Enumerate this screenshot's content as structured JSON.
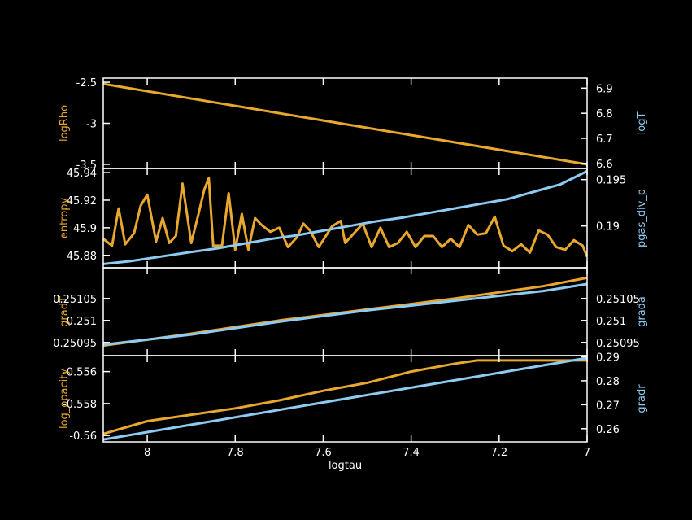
{
  "colors": {
    "left": "#E8A72E",
    "right": "#8DCBF2",
    "frame": "#FFFFFF",
    "background": "#000000"
  },
  "chart_data": [
    {
      "type": "line",
      "x_axis": {
        "label": "logtau",
        "lim": [
          8.1,
          7.0
        ],
        "ticks": [
          "8",
          "7.8",
          "7.6",
          "7.4",
          "7.2",
          "7"
        ]
      },
      "panels": [
        {
          "left_axis": {
            "label": "logRho",
            "lim": [
              -3.55,
              -2.45
            ],
            "ticks": [
              "-3.5",
              "-3",
              "-2.5"
            ],
            "tick_values": [
              -3.5,
              -3.0,
              -2.5
            ]
          },
          "right_axis": {
            "label": "logT",
            "lim": [
              6.58,
              6.94
            ],
            "ticks": [
              "6.6",
              "6.7",
              "6.8",
              "6.9"
            ],
            "tick_values": [
              6.6,
              6.7,
              6.8,
              6.9
            ]
          },
          "series": [
            {
              "axis": "left",
              "x": [
                8.1,
                7.0
              ],
              "y": [
                -2.52,
                -3.5
              ]
            }
          ]
        },
        {
          "left_axis": {
            "label": "entropy",
            "lim": [
              45.871,
              45.943
            ],
            "ticks": [
              "45.88",
              "45.9",
              "45.92",
              "45.94"
            ],
            "tick_values": [
              45.88,
              45.9,
              45.92,
              45.94
            ]
          },
          "right_axis": {
            "label": "pgas_div_p",
            "lim": [
              0.1855,
              0.1962
            ],
            "ticks": [
              "0.19",
              "0.195"
            ],
            "tick_values": [
              0.19,
              0.195
            ]
          },
          "series": [
            {
              "axis": "left",
              "x": [
                8.1,
                8.08,
                8.065,
                8.05,
                8.03,
                8.015,
                8.0,
                7.98,
                7.965,
                7.95,
                7.935,
                7.92,
                7.9,
                7.885,
                7.87,
                7.86,
                7.85,
                7.83,
                7.815,
                7.8,
                7.785,
                7.77,
                7.755,
                7.74,
                7.72,
                7.7,
                7.68,
                7.66,
                7.645,
                7.63,
                7.61,
                7.58,
                7.56,
                7.55,
                7.53,
                7.51,
                7.49,
                7.47,
                7.45,
                7.43,
                7.41,
                7.39,
                7.37,
                7.35,
                7.33,
                7.31,
                7.29,
                7.27,
                7.25,
                7.23,
                7.21,
                7.19,
                7.17,
                7.15,
                7.13,
                7.11,
                7.09,
                7.07,
                7.05,
                7.03,
                7.01,
                7.0
              ],
              "y": [
                45.892,
                45.887,
                45.914,
                45.888,
                45.896,
                45.916,
                45.924,
                45.89,
                45.907,
                45.889,
                45.894,
                45.932,
                45.889,
                45.908,
                45.928,
                45.936,
                45.887,
                45.887,
                45.925,
                45.884,
                45.91,
                45.884,
                45.907,
                45.902,
                45.897,
                45.9,
                45.886,
                45.893,
                45.903,
                45.898,
                45.886,
                45.901,
                45.905,
                45.889,
                45.896,
                45.903,
                45.886,
                45.9,
                45.886,
                45.889,
                45.897,
                45.886,
                45.894,
                45.894,
                45.886,
                45.892,
                45.886,
                45.902,
                45.895,
                45.896,
                45.908,
                45.887,
                45.883,
                45.888,
                45.882,
                45.898,
                45.895,
                45.886,
                45.884,
                45.891,
                45.887,
                45.879
              ]
            },
            {
              "axis": "right",
              "x": [
                8.1,
                8.04,
                7.97,
                7.9,
                7.84,
                7.78,
                7.72,
                7.66,
                7.6,
                7.54,
                7.48,
                7.42,
                7.36,
                7.3,
                7.24,
                7.18,
                7.12,
                7.06,
                7.0
              ],
              "y": [
                0.1859,
                0.1862,
                0.1867,
                0.1872,
                0.1876,
                0.1881,
                0.1886,
                0.189,
                0.1895,
                0.19,
                0.1905,
                0.1909,
                0.1914,
                0.1919,
                0.1924,
                0.1929,
                0.1937,
                0.1945,
                0.1959
              ]
            }
          ]
        },
        {
          "left_axis": {
            "label": "gradT",
            "lim": [
              0.25092,
              0.25112
            ],
            "ticks": [
              "0.25095",
              "0.251",
              "0.25105"
            ],
            "tick_values": [
              0.25095,
              0.251,
              0.25105
            ]
          },
          "right_axis": {
            "label": "grada",
            "lim": [
              0.25092,
              0.25112
            ],
            "ticks": [
              "0.25095",
              "0.251",
              "0.25105"
            ],
            "tick_values": [
              0.25095,
              0.251,
              0.25105
            ]
          },
          "series": [
            {
              "axis": "left",
              "x": [
                8.1,
                7.9,
                7.7,
                7.5,
                7.3,
                7.1,
                7.0
              ],
              "y": [
                0.250943,
                0.25097,
                0.251,
                0.251025,
                0.25105,
                0.251078,
                0.251097
              ]
            },
            {
              "axis": "right",
              "x": [
                8.1,
                7.9,
                7.7,
                7.5,
                7.3,
                7.1,
                7.0
              ],
              "y": [
                0.250945,
                0.250968,
                0.250997,
                0.251023,
                0.251045,
                0.251067,
                0.251083
              ]
            }
          ]
        },
        {
          "left_axis": {
            "label": "log_opacity",
            "lim": [
              -0.5604,
              -0.555
            ],
            "ticks": [
              "-0.56",
              "-0.558",
              "-0.556"
            ],
            "tick_values": [
              -0.56,
              -0.558,
              -0.556
            ]
          },
          "right_axis": {
            "label": "gradr",
            "lim": [
              0.2545,
              0.2905
            ],
            "ticks": [
              "0.26",
              "0.27",
              "0.28",
              "0.29"
            ],
            "tick_values": [
              0.26,
              0.27,
              0.28,
              0.29
            ]
          },
          "series": [
            {
              "axis": "left",
              "x": [
                8.1,
                8.0,
                7.9,
                7.8,
                7.7,
                7.6,
                7.5,
                7.4,
                7.3,
                7.25,
                7.2,
                7.1,
                7.0
              ],
              "y": [
                -0.5599,
                -0.5591,
                -0.5587,
                -0.5583,
                -0.5578,
                -0.5572,
                -0.5567,
                -0.556,
                -0.5555,
                -0.5553,
                -0.5553,
                -0.5553,
                -0.5553
              ]
            },
            {
              "axis": "right",
              "x": [
                8.1,
                7.0
              ],
              "y": [
                0.2555,
                0.2895
              ]
            }
          ]
        }
      ]
    }
  ]
}
